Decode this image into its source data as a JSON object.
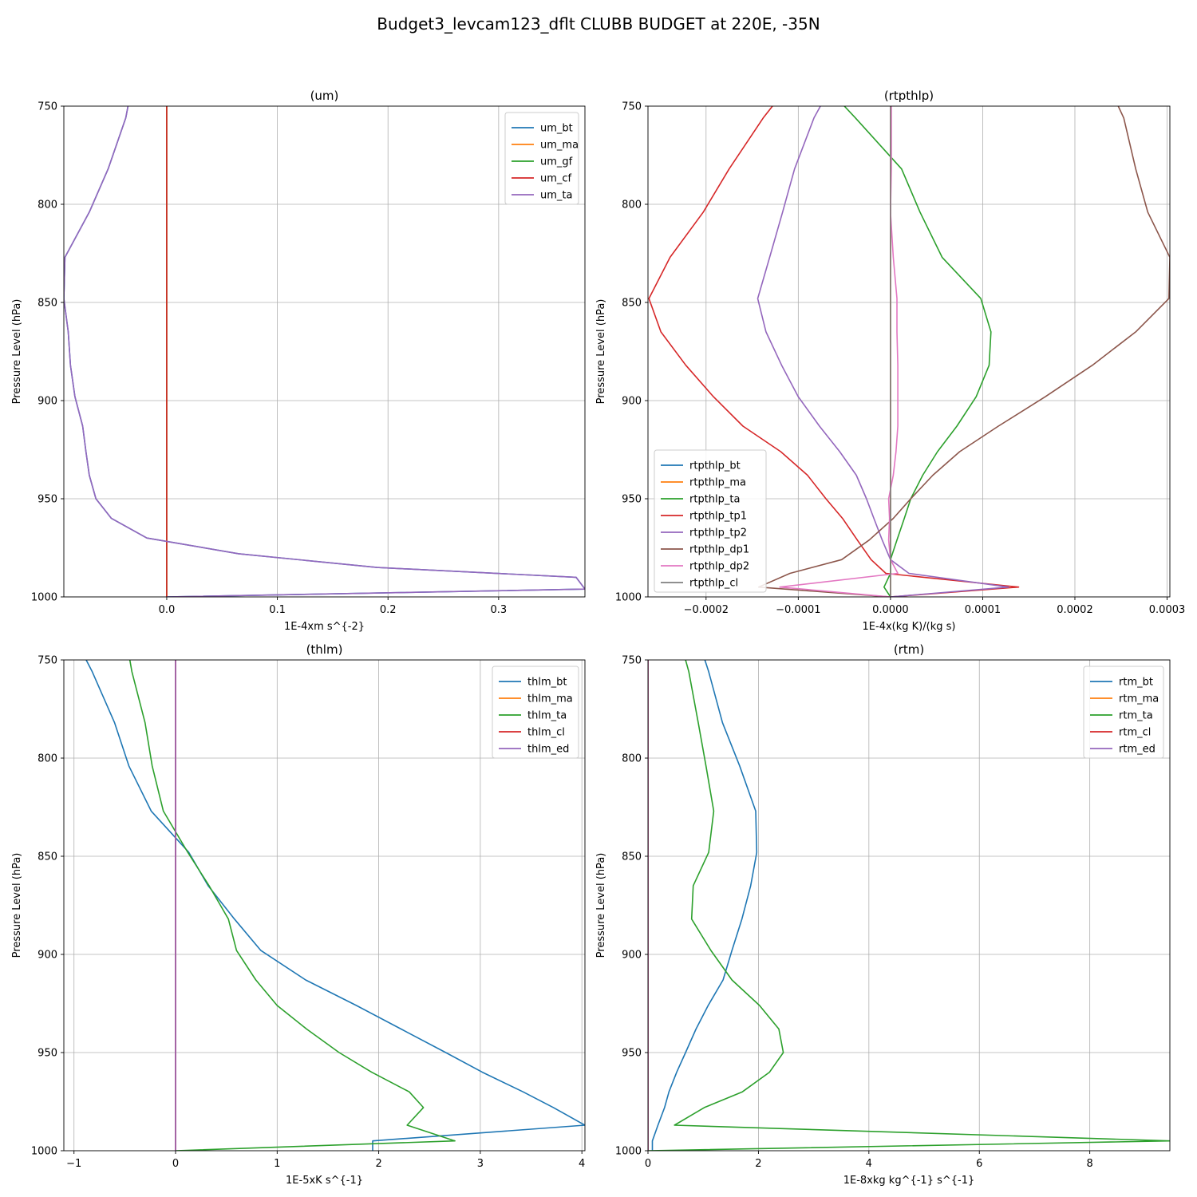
{
  "figure_title": "Budget3_levcam123_dflt CLUBB BUDGET at 220E, -35N",
  "chart_data": [
    {
      "type": "line",
      "title": "(um)",
      "xlabel": "1E-4xm s^{-2}",
      "ylabel": "Pressure Level (hPa)",
      "xlim": [
        -0.093,
        0.378
      ],
      "ylim": [
        1000,
        750
      ],
      "yticks": [
        750,
        800,
        850,
        900,
        950,
        1000
      ],
      "xticks": [
        0.0,
        0.1,
        0.2,
        0.3
      ],
      "xtick_labels": [
        "0.0",
        "0.1",
        "0.2",
        "0.3"
      ],
      "legend_loc": "upper right",
      "grid": true,
      "y": [
        750,
        756,
        782,
        804,
        827,
        848,
        865,
        882,
        898,
        913,
        926,
        938,
        950,
        960,
        970,
        978,
        985,
        990,
        996,
        1000
      ],
      "series": [
        {
          "name": "um_bt",
          "color": "#1f77b4",
          "values": [
            -0.035,
            -0.037,
            -0.053,
            -0.07,
            -0.092,
            -0.093,
            -0.089,
            -0.087,
            -0.083,
            -0.076,
            -0.073,
            -0.07,
            -0.064,
            -0.05,
            -0.018,
            0.065,
            0.19,
            0.37,
            0.378,
            0.0
          ]
        },
        {
          "name": "um_ma",
          "color": "#ff7f0e",
          "values": [
            0,
            0,
            0,
            0,
            0,
            0,
            0,
            0,
            0,
            0,
            0,
            0,
            0,
            0,
            0,
            0,
            0,
            0,
            0,
            0
          ]
        },
        {
          "name": "um_gf",
          "color": "#2ca02c",
          "values": [
            0,
            0,
            0,
            0,
            0,
            0,
            0,
            0,
            0,
            0,
            0,
            0,
            0,
            0,
            0,
            0,
            0,
            0,
            0,
            0
          ]
        },
        {
          "name": "um_cf",
          "color": "#d62728",
          "values": [
            0,
            0,
            0,
            0,
            0,
            0,
            0,
            0,
            0,
            0,
            0,
            0,
            0,
            0,
            0,
            0,
            0,
            0,
            0,
            0
          ]
        },
        {
          "name": "um_ta",
          "color": "#9467bd",
          "values": [
            -0.035,
            -0.037,
            -0.053,
            -0.07,
            -0.092,
            -0.093,
            -0.089,
            -0.087,
            -0.083,
            -0.076,
            -0.073,
            -0.07,
            -0.064,
            -0.05,
            -0.018,
            0.065,
            0.19,
            0.37,
            0.378,
            0.0
          ]
        }
      ]
    },
    {
      "type": "line",
      "title": "(rtpthlp)",
      "xlabel": "1E-4x(kg K)/(kg s)",
      "ylabel": "Pressure Level (hPa)",
      "xlim": [
        -0.000263,
        0.000303
      ],
      "ylim": [
        1000,
        750
      ],
      "yticks": [
        750,
        800,
        850,
        900,
        950,
        1000
      ],
      "xticks": [
        -0.0002,
        -0.0001,
        0.0,
        0.0001,
        0.0002,
        0.0003
      ],
      "xtick_labels": [
        "−0.0002",
        "−0.0001",
        "0.0000",
        "0.0001",
        "0.0002",
        "0.0003"
      ],
      "legend_loc": "lower left",
      "grid": true,
      "y": [
        750,
        756,
        782,
        804,
        827,
        848,
        865,
        882,
        898,
        913,
        926,
        938,
        950,
        960,
        971,
        981,
        988,
        995,
        1000
      ],
      "series": [
        {
          "name": "rtpthlp_bt",
          "color": "#1f77b4",
          "values": [
            0,
            0,
            0,
            0,
            0,
            0,
            0,
            0,
            0,
            0,
            0,
            0,
            0,
            0,
            0,
            0,
            0,
            0,
            0
          ]
        },
        {
          "name": "rtpthlp_ma",
          "color": "#ff7f0e",
          "values": [
            0,
            0,
            0,
            0,
            0,
            0,
            0,
            0,
            0,
            0,
            0,
            0,
            0,
            0,
            0,
            0,
            0,
            0,
            0
          ]
        },
        {
          "name": "rtpthlp_ta",
          "color": "#2ca02c",
          "values": [
            -5e-05,
            -3.8e-05,
            1.2e-05,
            3.2e-05,
            5.6e-05,
            9.8e-05,
            0.000109,
            0.000107,
            9.3e-05,
            7.2e-05,
            5.1e-05,
            3.5e-05,
            2.2e-05,
            1.5e-05,
            7e-06,
            0.0,
            0.0,
            -7e-06,
            0.0
          ]
        },
        {
          "name": "rtpthlp_tp1",
          "color": "#d62728",
          "values": [
            -0.000128,
            -0.000138,
            -0.000175,
            -0.000203,
            -0.000239,
            -0.000262,
            -0.000249,
            -0.000222,
            -0.000192,
            -0.00016,
            -0.000119,
            -9e-05,
            -7e-05,
            -5.2e-05,
            -3.6e-05,
            -2.1e-05,
            -5e-06,
            0.000139,
            0.0
          ]
        },
        {
          "name": "rtpthlp_tp2",
          "color": "#9467bd",
          "values": [
            -7.6e-05,
            -8.3e-05,
            -0.000104,
            -0.000117,
            -0.000131,
            -0.000144,
            -0.000135,
            -0.000118,
            -0.0001,
            -7.7e-05,
            -5.5e-05,
            -3.7e-05,
            -2.6e-05,
            -1.8e-05,
            -9e-06,
            0.0,
            2e-05,
            0.000128,
            0.0
          ]
        },
        {
          "name": "rtpthlp_dp1",
          "color": "#8c564b",
          "values": [
            0.000247,
            0.000253,
            0.000266,
            0.000279,
            0.000303,
            0.000302,
            0.000266,
            0.000219,
            0.000168,
            0.000117,
            7.5e-05,
            4.6e-05,
            2.2e-05,
            3e-06,
            -2.3e-05,
            -5.3e-05,
            -0.000109,
            -0.000143,
            0.0
          ]
        },
        {
          "name": "rtpthlp_dp2",
          "color": "#e377c2",
          "values": [
            1e-06,
            1e-06,
            1e-06,
            0.0,
            3e-06,
            7e-06,
            7e-06,
            8e-06,
            8e-06,
            8e-06,
            6e-06,
            3e-06,
            -2e-06,
            -1e-06,
            -2e-06,
            0.0,
            8e-06,
            -0.00012,
            0.0
          ]
        },
        {
          "name": "rtpthlp_cl",
          "color": "#7f7f7f",
          "values": [
            0,
            0,
            0,
            0,
            0,
            0,
            0,
            0,
            0,
            0,
            0,
            0,
            0,
            0,
            0,
            0,
            0,
            0,
            0
          ]
        }
      ]
    },
    {
      "type": "line",
      "title": "(thlm)",
      "xlabel": "1E-5xK s^{-1}",
      "ylabel": "Pressure Level (hPa)",
      "xlim": [
        -1.1,
        4.03
      ],
      "ylim": [
        1000,
        750
      ],
      "yticks": [
        750,
        800,
        850,
        900,
        950,
        1000
      ],
      "xticks": [
        -1,
        0,
        1,
        2,
        3,
        4
      ],
      "xtick_labels": [
        "−1",
        "0",
        "1",
        "2",
        "3",
        "4"
      ],
      "legend_loc": "upper right",
      "grid": true,
      "y": [
        750,
        756,
        782,
        804,
        827,
        848,
        865,
        882,
        898,
        913,
        926,
        938,
        950,
        960,
        970,
        978,
        987,
        995,
        1000
      ],
      "series": [
        {
          "name": "thlm_bt",
          "color": "#1f77b4",
          "values": [
            -0.88,
            -0.82,
            -0.6,
            -0.46,
            -0.24,
            0.13,
            0.32,
            0.58,
            0.84,
            1.28,
            1.78,
            2.22,
            2.66,
            3.02,
            3.42,
            3.72,
            4.03,
            1.94,
            1.94
          ]
        },
        {
          "name": "thlm_ma",
          "color": "#ff7f0e",
          "values": [
            0,
            0,
            0,
            0,
            0,
            0,
            0,
            0,
            0,
            0,
            0,
            0,
            0,
            0,
            0,
            0,
            0,
            0,
            0
          ]
        },
        {
          "name": "thlm_ta",
          "color": "#2ca02c",
          "values": [
            -0.45,
            -0.43,
            -0.3,
            -0.23,
            -0.12,
            0.12,
            0.33,
            0.52,
            0.6,
            0.79,
            1.0,
            1.29,
            1.61,
            1.93,
            2.3,
            2.44,
            2.28,
            2.75,
            0.0
          ]
        },
        {
          "name": "thlm_cl",
          "color": "#d62728",
          "values": [
            0,
            0,
            0,
            0,
            0,
            0,
            0,
            0,
            0,
            0,
            0,
            0,
            0,
            0,
            0,
            0,
            0,
            0,
            0
          ]
        },
        {
          "name": "thlm_ed",
          "color": "#9467bd",
          "values": [
            0,
            0,
            0,
            0,
            0,
            0,
            0,
            0,
            0,
            0,
            0,
            0,
            0,
            0,
            0,
            0,
            0,
            0,
            0
          ]
        }
      ]
    },
    {
      "type": "line",
      "title": "(rtm)",
      "xlabel": "1E-8xkg kg^{-1} s^{-1}",
      "ylabel": "Pressure Level (hPa)",
      "xlim": [
        0,
        9.45
      ],
      "ylim": [
        1000,
        750
      ],
      "yticks": [
        750,
        800,
        850,
        900,
        950,
        1000
      ],
      "xticks": [
        0,
        2,
        4,
        6,
        8
      ],
      "xtick_labels": [
        "0",
        "2",
        "4",
        "6",
        "8"
      ],
      "legend_loc": "upper right",
      "grid": true,
      "y": [
        750,
        756,
        782,
        804,
        827,
        848,
        865,
        882,
        898,
        913,
        926,
        938,
        950,
        960,
        970,
        978,
        987,
        995,
        1000
      ],
      "series": [
        {
          "name": "rtm_bt",
          "color": "#1f77b4",
          "values": [
            1.03,
            1.1,
            1.35,
            1.66,
            1.95,
            1.97,
            1.86,
            1.7,
            1.52,
            1.36,
            1.09,
            0.87,
            0.68,
            0.52,
            0.38,
            0.3,
            0.18,
            0.08,
            0.08
          ]
        },
        {
          "name": "rtm_ma",
          "color": "#ff7f0e",
          "values": [
            0,
            0,
            0,
            0,
            0,
            0,
            0,
            0,
            0,
            0,
            0,
            0,
            0,
            0,
            0,
            0,
            0,
            0,
            0
          ]
        },
        {
          "name": "rtm_ta",
          "color": "#2ca02c",
          "values": [
            0.68,
            0.74,
            0.91,
            1.05,
            1.19,
            1.1,
            0.82,
            0.79,
            1.14,
            1.52,
            2.02,
            2.37,
            2.45,
            2.2,
            1.71,
            1.02,
            0.48,
            9.45,
            0.0
          ]
        },
        {
          "name": "rtm_cl",
          "color": "#d62728",
          "values": [
            0,
            0,
            0,
            0,
            0,
            0,
            0,
            0,
            0,
            0,
            0,
            0,
            0,
            0,
            0,
            0,
            0,
            0,
            0
          ]
        },
        {
          "name": "rtm_ed",
          "color": "#9467bd",
          "values": [
            0,
            0,
            0,
            0,
            0,
            0,
            0,
            0,
            0,
            0,
            0,
            0,
            0,
            0,
            0,
            0,
            0,
            0,
            0
          ]
        }
      ]
    }
  ]
}
